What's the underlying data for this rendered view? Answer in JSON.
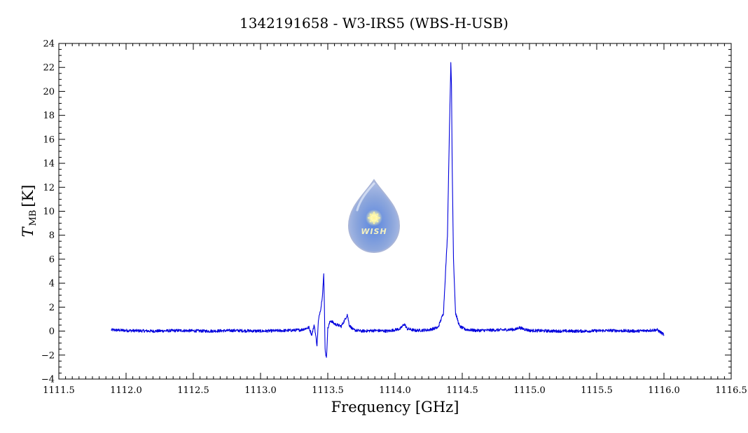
{
  "chart_data": {
    "type": "line",
    "title": "1342191658 - W3-IRS5 (WBS-H-USB)",
    "xlabel": "Frequency [GHz]",
    "ylabel": "T",
    "ylabel_sub": "MB",
    "ylabel_unit": "[K]",
    "xlim": [
      1111.5,
      1116.5
    ],
    "ylim": [
      -4,
      24
    ],
    "x_ticks": [
      1111.5,
      1112.0,
      1112.5,
      1113.0,
      1113.5,
      1114.0,
      1114.5,
      1115.0,
      1115.5,
      1116.0,
      1116.5
    ],
    "x_tick_labels": [
      "1111.5",
      "1112.0",
      "1112.5",
      "1113.0",
      "1113.5",
      "1114.0",
      "1114.5",
      "1115.0",
      "1115.5",
      "1116.0",
      "1116.5"
    ],
    "y_ticks": [
      -4,
      -2,
      0,
      2,
      4,
      6,
      8,
      10,
      12,
      14,
      16,
      18,
      20,
      22,
      24
    ],
    "y_tick_labels": [
      "−4",
      "−2",
      "0",
      "2",
      "4",
      "6",
      "8",
      "10",
      "12",
      "14",
      "16",
      "18",
      "20",
      "22",
      "24"
    ],
    "grid": false,
    "series": [
      {
        "color": "#0000dd",
        "x": [
          1111.89,
          1112.0,
          1112.2,
          1112.4,
          1112.6,
          1112.8,
          1113.0,
          1113.2,
          1113.3,
          1113.36,
          1113.38,
          1113.4,
          1113.42,
          1113.43,
          1113.44,
          1113.45,
          1113.46,
          1113.47,
          1113.475,
          1113.48,
          1113.49,
          1113.5,
          1113.52,
          1113.55,
          1113.6,
          1113.63,
          1113.645,
          1113.66,
          1113.69,
          1113.75,
          1113.85,
          1113.95,
          1114.04,
          1114.07,
          1114.09,
          1114.15,
          1114.25,
          1114.32,
          1114.36,
          1114.39,
          1114.405,
          1114.415,
          1114.42,
          1114.425,
          1114.435,
          1114.45,
          1114.48,
          1114.52,
          1114.6,
          1114.8,
          1114.9,
          1114.92,
          1115.0,
          1115.2,
          1115.4,
          1115.6,
          1115.8,
          1115.95,
          1116.0
        ],
        "y": [
          0.1,
          0.05,
          0.0,
          0.05,
          0.0,
          0.05,
          0.0,
          0.05,
          0.1,
          0.3,
          -0.3,
          0.5,
          -1.2,
          0.8,
          1.5,
          2.0,
          3.0,
          4.7,
          2.0,
          -1.5,
          -2.3,
          0.2,
          0.9,
          0.6,
          0.4,
          1.0,
          1.4,
          0.5,
          0.1,
          0.0,
          0.05,
          0.0,
          0.2,
          0.6,
          0.2,
          0.05,
          0.1,
          0.3,
          1.5,
          8.0,
          17.0,
          22.3,
          20.5,
          14.0,
          6.0,
          1.5,
          0.4,
          0.15,
          0.05,
          0.1,
          0.15,
          0.3,
          0.05,
          0.0,
          0.0,
          0.05,
          0.0,
          0.1,
          -0.3
        ]
      }
    ]
  },
  "logo": {
    "text": "WISH"
  }
}
